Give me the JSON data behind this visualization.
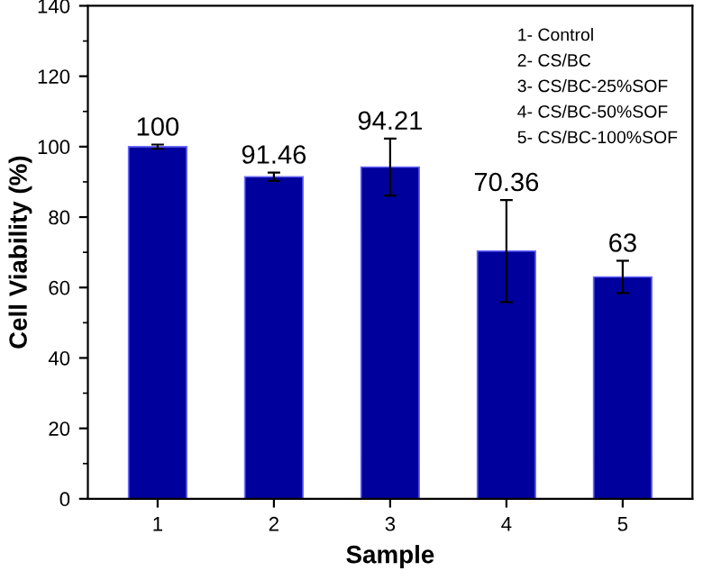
{
  "chart_data": {
    "type": "bar",
    "xlabel": "Sample",
    "ylabel": "Cell Viability (%)",
    "categories": [
      "1",
      "2",
      "3",
      "4",
      "5"
    ],
    "values": [
      100,
      91.46,
      94.21,
      70.36,
      63
    ],
    "errors": [
      0.6,
      1.2,
      8.1,
      14.5,
      4.6
    ],
    "data_labels": true,
    "color": "#00009c",
    "ylim": [
      0,
      140
    ],
    "yticks": [
      0,
      20,
      40,
      60,
      80,
      100,
      120,
      140
    ],
    "annotations": [
      "1- Control",
      "2- CS/BC",
      "3- CS/BC-25%SOF",
      "4- CS/BC-50%SOF",
      "5- CS/BC-100%SOF"
    ]
  }
}
